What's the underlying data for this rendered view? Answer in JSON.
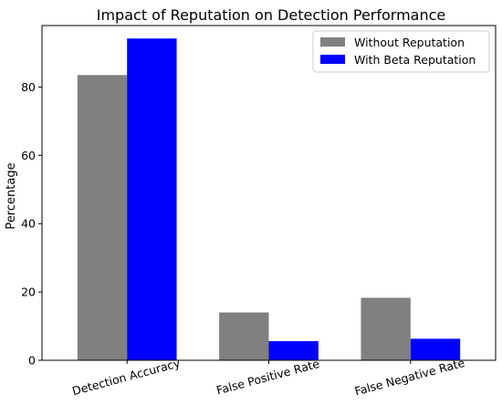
{
  "chart_data": {
    "type": "bar",
    "title": "Impact of Reputation on Detection Performance",
    "xlabel": "",
    "ylabel": "Percentage",
    "categories": [
      "Detection Accuracy",
      "False Positive Rate",
      "False Negative Rate"
    ],
    "series": [
      {
        "name": "Without Reputation",
        "color": "#808080",
        "values": [
          83.5,
          14.0,
          18.3
        ]
      },
      {
        "name": "With Beta Reputation",
        "color": "#0000ff",
        "values": [
          94.2,
          5.6,
          6.3
        ]
      }
    ],
    "ylim": [
      0,
      98
    ],
    "yticks": [
      0,
      20,
      40,
      60,
      80
    ],
    "grid": false,
    "legend_position": "top-right"
  }
}
